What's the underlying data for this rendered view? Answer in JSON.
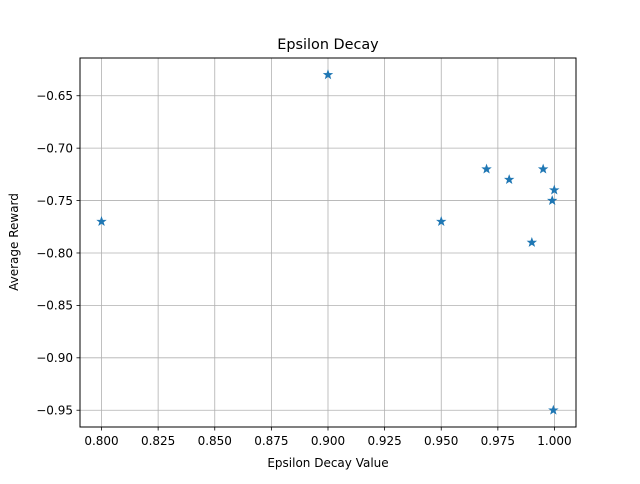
{
  "chart_data": {
    "type": "scatter",
    "title": "Epsilon Decay",
    "xlabel": "Epsilon Decay Value",
    "ylabel": "Average Reward",
    "xlim": [
      0.7905,
      1.0095
    ],
    "ylim": [
      -0.966,
      -0.614
    ],
    "xticks": [
      0.8,
      0.825,
      0.85,
      0.875,
      0.9,
      0.925,
      0.95,
      0.975,
      1.0
    ],
    "xtick_labels": [
      "0.800",
      "0.825",
      "0.850",
      "0.875",
      "0.900",
      "0.925",
      "0.950",
      "0.975",
      "1.000"
    ],
    "yticks": [
      -0.65,
      -0.7,
      -0.75,
      -0.8,
      -0.85,
      -0.9,
      -0.95
    ],
    "ytick_labels": [
      "−0.65",
      "−0.70",
      "−0.75",
      "−0.80",
      "−0.85",
      "−0.90",
      "−0.95"
    ],
    "grid": true,
    "marker": "star",
    "marker_color": "#1f77b4",
    "points": [
      {
        "x": 0.8,
        "y": -0.77
      },
      {
        "x": 0.9,
        "y": -0.63
      },
      {
        "x": 0.95,
        "y": -0.77
      },
      {
        "x": 0.97,
        "y": -0.72
      },
      {
        "x": 0.98,
        "y": -0.73
      },
      {
        "x": 0.99,
        "y": -0.79
      },
      {
        "x": 0.995,
        "y": -0.72
      },
      {
        "x": 0.999,
        "y": -0.75
      },
      {
        "x": 0.9995,
        "y": -0.95
      },
      {
        "x": 0.9999,
        "y": -0.74
      }
    ]
  }
}
